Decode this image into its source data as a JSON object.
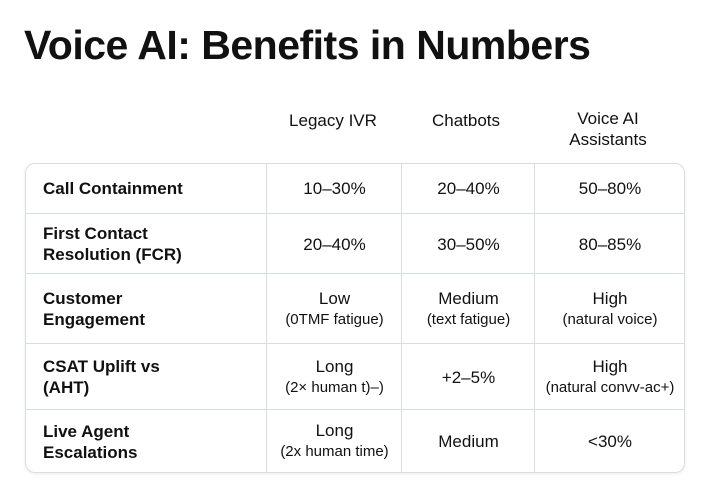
{
  "header": {
    "title": "Voice AI: Benefits in Numbers"
  },
  "table": {
    "columns": [
      [
        "Legacy IVR"
      ],
      [
        "Chatbots"
      ],
      [
        "Voice AI",
        "Assistants"
      ]
    ],
    "rows": [
      [
        [
          "Call Containment"
        ],
        [
          "10–30%"
        ],
        [
          "20–40%"
        ],
        [
          "50–80%"
        ]
      ],
      [
        [
          "First Contact",
          "Resolution  (FCR)"
        ],
        [
          "20–40%"
        ],
        [
          "30–50%"
        ],
        [
          "80–85%"
        ]
      ],
      [
        [
          "Customer",
          "Engagement"
        ],
        [
          "Low",
          "(0TMF fatigue)"
        ],
        [
          "Medium",
          "(text fatigue)"
        ],
        [
          "High",
          "(natural voice)"
        ]
      ],
      [
        [
          "CSAT Uplift vs",
          "(AHT)"
        ],
        [
          "Long",
          "(2× human t)–)"
        ],
        [
          "+2–5%"
        ],
        [
          "High",
          "(natural convv-ac+)"
        ]
      ],
      [
        [
          "Live Agent",
          "Escalations"
        ],
        [
          "Long",
          "(2x human time)"
        ],
        [
          "Medium"
        ],
        [
          "<30%"
        ]
      ]
    ]
  }
}
